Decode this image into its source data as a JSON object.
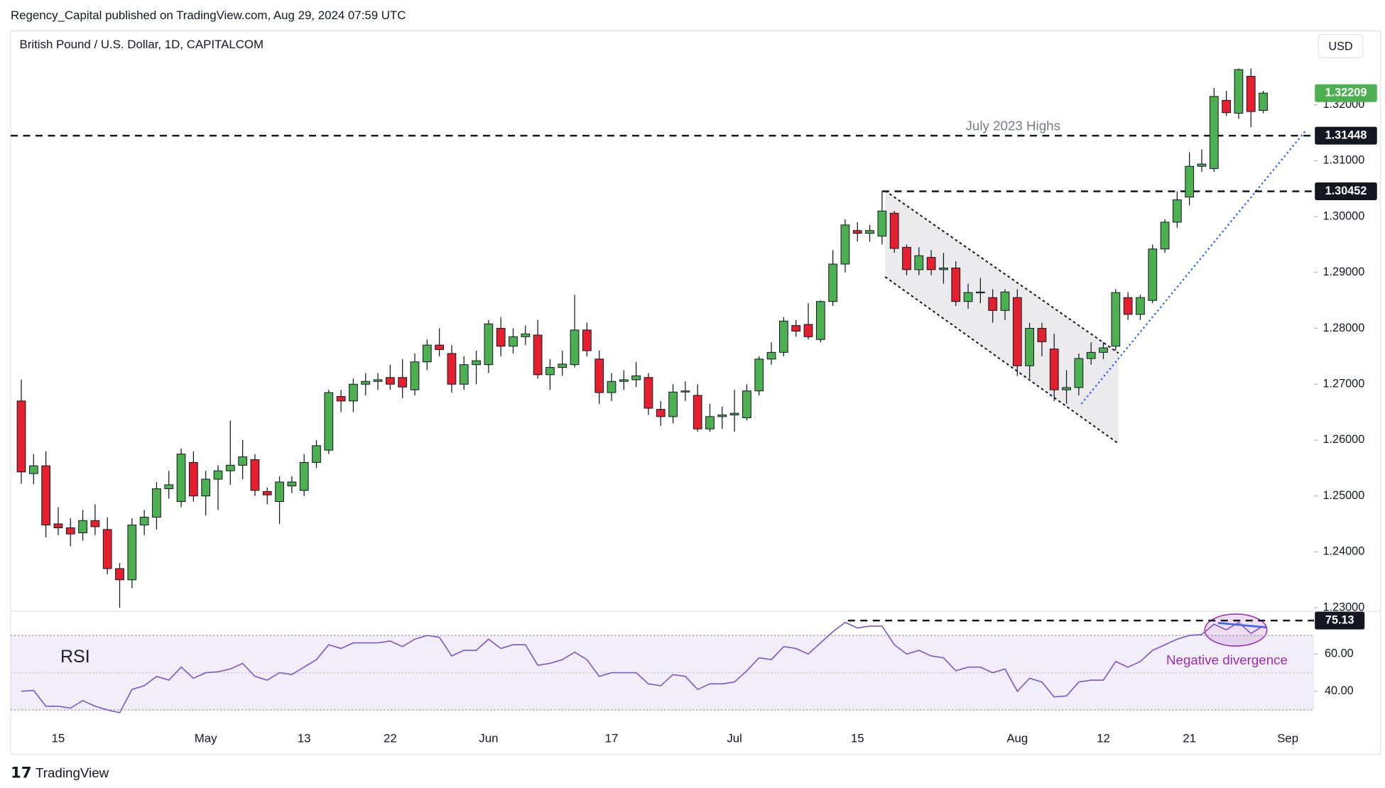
{
  "page": {
    "publisher": "Regency_Capital published on TradingView.com, Aug 29, 2024 07:59 UTC",
    "footer_logo": "TradingView"
  },
  "chart_data": {
    "type": "candlestick",
    "title": "British Pound / U.S. Dollar, 1D, CAPITALCOM",
    "currency": "USD",
    "up_color": "#4caf50",
    "down_color": "#e5202e",
    "categories": [
      null,
      null,
      null,
      "15",
      null,
      null,
      null,
      null,
      null,
      null,
      null,
      null,
      null,
      null,
      null,
      "May",
      null,
      null,
      null,
      null,
      null,
      null,
      null,
      "13",
      null,
      null,
      null,
      null,
      null,
      null,
      "22",
      null,
      null,
      null,
      null,
      null,
      null,
      null,
      "Jun",
      null,
      null,
      null,
      null,
      null,
      null,
      null,
      null,
      null,
      "17",
      null,
      null,
      null,
      null,
      null,
      null,
      null,
      null,
      null,
      "Jul",
      null,
      null,
      null,
      null,
      null,
      null,
      null,
      null,
      null,
      "15",
      null,
      null,
      null,
      null,
      null,
      null,
      null,
      null,
      null,
      null,
      null,
      null,
      "Aug",
      null,
      null,
      null,
      null,
      null,
      null,
      "12",
      null,
      null,
      null,
      null,
      null,
      null,
      "21",
      null,
      null,
      null,
      null,
      null,
      null,
      null,
      "Sep"
    ],
    "open": [
      1.267,
      1.254,
      1.2554,
      1.245,
      1.2443,
      1.2434,
      1.2456,
      1.244,
      1.237,
      1.235,
      1.2448,
      1.2462,
      1.2513,
      1.249,
      1.256,
      1.25,
      1.253,
      1.2545,
      1.2555,
      1.2565,
      1.2508,
      1.249,
      1.2518,
      1.251,
      1.256,
      1.2582,
      1.2678,
      1.267,
      1.27,
      1.2705,
      1.2712,
      1.2712,
      1.269,
      1.274,
      1.277,
      1.2755,
      1.27,
      1.2735,
      1.2735,
      1.28,
      1.2768,
      1.2785,
      1.2788,
      1.2717,
      1.273,
      1.2735,
      1.2797,
      1.2745,
      1.2685,
      1.2705,
      1.2708,
      1.2712,
      1.2655,
      1.2642,
      1.2686,
      1.268,
      1.262,
      1.2642,
      1.2645,
      1.264,
      1.2688,
      1.2745,
      1.2757,
      1.2805,
      1.2807,
      1.278,
      1.2848,
      1.2915,
      1.2975,
      1.297,
      1.2965,
      1.3006,
      1.2945,
      1.2905,
      1.2927,
      1.2905,
      1.2908,
      1.2848,
      1.2864,
      1.2855,
      1.2832,
      1.2855,
      1.2733,
      1.28,
      1.2763,
      1.269,
      1.2694,
      1.2746,
      1.2757,
      1.2768,
      1.2855,
      1.2825,
      1.285,
      1.2942,
      1.299,
      1.3035,
      1.309,
      1.3086,
      1.3208,
      1.3185,
      1.3251,
      1.319,
      null,
      null
    ],
    "high": [
      1.2708,
      1.2575,
      1.258,
      1.248,
      1.246,
      1.2475,
      1.2485,
      1.2462,
      1.238,
      1.246,
      1.2475,
      1.2525,
      1.2545,
      1.2585,
      1.258,
      1.2545,
      1.2555,
      1.2635,
      1.26,
      1.2575,
      1.2515,
      1.2535,
      1.2535,
      1.2575,
      1.26,
      1.269,
      1.269,
      1.271,
      1.272,
      1.272,
      1.2735,
      1.2745,
      1.2755,
      1.278,
      1.28,
      1.277,
      1.275,
      1.276,
      1.2815,
      1.282,
      1.28,
      1.2805,
      1.2815,
      1.2745,
      1.276,
      1.286,
      1.281,
      1.276,
      1.272,
      1.2725,
      1.274,
      1.272,
      1.267,
      1.27,
      1.2705,
      1.27,
      1.2665,
      1.266,
      1.269,
      1.27,
      1.275,
      1.2775,
      1.282,
      1.2815,
      1.2845,
      1.285,
      1.294,
      1.2995,
      1.299,
      1.2985,
      1.3045,
      1.301,
      1.295,
      1.2945,
      1.294,
      1.2935,
      1.292,
      1.288,
      1.289,
      1.287,
      1.287,
      1.287,
      1.281,
      1.281,
      1.279,
      1.2725,
      1.2755,
      1.2775,
      1.2775,
      1.287,
      1.2865,
      1.286,
      1.295,
      1.2995,
      1.3045,
      1.3115,
      1.312,
      1.323,
      1.3225,
      1.3265,
      1.3265,
      1.3225,
      null,
      null
    ],
    "low": [
      1.2522,
      1.2521,
      1.2426,
      1.243,
      1.241,
      1.242,
      1.243,
      1.236,
      1.23,
      1.2335,
      1.243,
      1.244,
      1.2495,
      1.248,
      1.249,
      1.2465,
      1.2475,
      1.252,
      1.253,
      1.25,
      1.2485,
      1.245,
      1.2505,
      1.25,
      1.255,
      1.2575,
      1.265,
      1.265,
      1.268,
      1.269,
      1.269,
      1.2675,
      1.268,
      1.2725,
      1.275,
      1.2685,
      1.269,
      1.27,
      1.272,
      1.275,
      1.2755,
      1.277,
      1.271,
      1.269,
      1.2715,
      1.273,
      1.275,
      1.2665,
      1.267,
      1.269,
      1.2695,
      1.2645,
      1.2625,
      1.263,
      1.267,
      1.2615,
      1.2615,
      1.262,
      1.2615,
      1.2635,
      1.268,
      1.2735,
      1.275,
      1.2785,
      1.278,
      1.2775,
      1.284,
      1.29,
      1.2955,
      1.2955,
      1.295,
      1.2935,
      1.2895,
      1.2895,
      1.2895,
      1.288,
      1.284,
      1.2835,
      1.2845,
      1.281,
      1.2815,
      1.2715,
      1.271,
      1.275,
      1.267,
      1.2665,
      1.268,
      1.2735,
      1.2745,
      1.276,
      1.2815,
      1.2815,
      1.2845,
      1.2935,
      1.298,
      1.302,
      1.308,
      1.308,
      1.318,
      1.3175,
      1.316,
      1.3185,
      null,
      null
    ],
    "close": [
      1.2543,
      1.2554,
      1.2448,
      1.2443,
      1.2432,
      1.2456,
      1.2445,
      1.237,
      1.235,
      1.2448,
      1.2462,
      1.2513,
      1.252,
      1.2575,
      1.25,
      1.253,
      1.2545,
      1.2555,
      1.257,
      1.251,
      1.2502,
      1.2525,
      1.2525,
      1.256,
      1.259,
      1.2685,
      1.267,
      1.27,
      1.2705,
      1.2708,
      1.27,
      1.2695,
      1.274,
      1.277,
      1.2762,
      1.27,
      1.2735,
      1.2742,
      1.2808,
      1.2768,
      1.2785,
      1.279,
      1.2717,
      1.273,
      1.2736,
      1.2797,
      1.276,
      1.2685,
      1.2705,
      1.2708,
      1.2715,
      1.2657,
      1.2642,
      1.2686,
      1.2688,
      1.262,
      1.2642,
      1.2645,
      1.2648,
      1.2688,
      1.2745,
      1.2757,
      1.2813,
      1.2795,
      1.2785,
      1.2848,
      1.2915,
      1.2985,
      1.297,
      1.2975,
      1.301,
      1.2943,
      1.2905,
      1.293,
      1.2905,
      1.2908,
      1.2848,
      1.2864,
      1.2865,
      1.2832,
      1.2865,
      1.2733,
      1.28,
      1.2776,
      1.269,
      1.2694,
      1.2746,
      1.2757,
      1.2765,
      1.2864,
      1.2825,
      1.2855,
      1.2942,
      1.299,
      1.303,
      1.309,
      1.3094,
      1.3215,
      1.3186,
      1.3263,
      1.3188,
      1.32209,
      null,
      null
    ],
    "ylim": [
      1.2295,
      1.3332
    ],
    "yticks": [
      {
        "value": 1.23,
        "label": "1.23000"
      },
      {
        "value": 1.24,
        "label": "1.24000"
      },
      {
        "value": 1.25,
        "label": "1.25000"
      },
      {
        "value": 1.26,
        "label": "1.26000"
      },
      {
        "value": 1.27,
        "label": "1.27000"
      },
      {
        "value": 1.28,
        "label": "1.28000"
      },
      {
        "value": 1.29,
        "label": "1.29000"
      },
      {
        "value": 1.3,
        "label": "1.30000"
      },
      {
        "value": 1.31,
        "label": "1.31000"
      },
      {
        "value": 1.32,
        "label": "1.32000"
      }
    ],
    "price_lines": [
      1.31448,
      1.30452
    ],
    "annotation": "July 2023 Highs",
    "rsi": {
      "label": "RSI",
      "color": "#7e57c2",
      "values": [
        40,
        40.5,
        32,
        32,
        31,
        35,
        32,
        30,
        28.5,
        41,
        43,
        48,
        46,
        53,
        47,
        50,
        50.5,
        52,
        55,
        48,
        46,
        50,
        49,
        53,
        57,
        65,
        63,
        66,
        66,
        66,
        67,
        64,
        68,
        70,
        69,
        59,
        62,
        62,
        68,
        63,
        65,
        65,
        54,
        55,
        57,
        61,
        57,
        48,
        50,
        50,
        50,
        44,
        43,
        49,
        48,
        41,
        44,
        44,
        45,
        51,
        58,
        57,
        64,
        63,
        60,
        66,
        72,
        77,
        74,
        75,
        75,
        65,
        60,
        62,
        59,
        58,
        51,
        53,
        53,
        50,
        52,
        40,
        47,
        45,
        37,
        37.5,
        45,
        46,
        46,
        56,
        53,
        56,
        62,
        65,
        68,
        70,
        70.5,
        76,
        73,
        77,
        71,
        75.13,
        null,
        null
      ],
      "ylim": [
        24.3,
        82.9
      ],
      "yticks": [
        {
          "value": 60,
          "label": "60.00"
        },
        {
          "value": 40,
          "label": "40.00"
        }
      ],
      "bands": [
        30,
        70
      ],
      "midline": 50,
      "annotation": "Negative divergence"
    }
  }
}
